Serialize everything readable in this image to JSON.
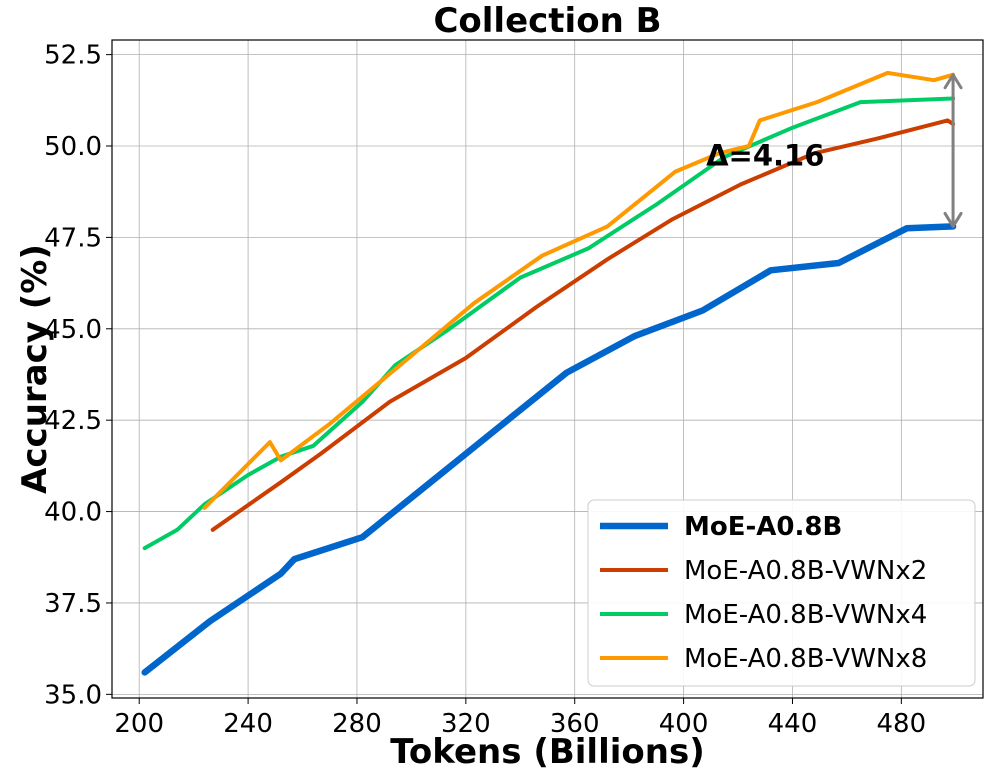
{
  "chart_data": {
    "type": "line",
    "title": "Collection B",
    "xlabel": "Tokens (Billions)",
    "ylabel": "Accuracy (%)",
    "xlim": [
      190,
      510
    ],
    "ylim": [
      34.9,
      52.9
    ],
    "xticks": [
      200,
      240,
      280,
      320,
      360,
      400,
      440,
      480
    ],
    "yticks": [
      35.0,
      37.5,
      40.0,
      42.5,
      45.0,
      47.5,
      50.0,
      52.5
    ],
    "xtick_labels": [
      "200",
      "240",
      "280",
      "320",
      "360",
      "400",
      "440",
      "480"
    ],
    "ytick_labels": [
      "35.0",
      "37.5",
      "40.0",
      "42.5",
      "45.0",
      "47.5",
      "50.0",
      "52.5"
    ],
    "grid": true,
    "legend_position": "lower-right",
    "series": [
      {
        "name": "MoE-A0.8B",
        "color": "#0066CC",
        "bold": true,
        "x": [
          202,
          226,
          252,
          257,
          282,
          307,
          332,
          357,
          382,
          407,
          432,
          457,
          482,
          499
        ],
        "y": [
          35.6,
          37.0,
          38.3,
          38.7,
          39.3,
          40.8,
          42.3,
          43.8,
          44.8,
          45.5,
          46.6,
          46.8,
          47.75,
          47.8
        ]
      },
      {
        "name": "MoE-A0.8B-VWNx2",
        "color": "#CC3D00",
        "bold": false,
        "x": [
          227,
          252,
          267,
          292,
          320,
          346,
          372,
          396,
          421,
          448,
          471,
          497,
          499
        ],
        "y": [
          39.5,
          40.8,
          41.6,
          43.0,
          44.2,
          45.6,
          46.9,
          48.0,
          48.95,
          49.8,
          50.2,
          50.7,
          50.6
        ]
      },
      {
        "name": "MoE-A0.8B-VWNx4",
        "color": "#00CC66",
        "bold": false,
        "x": [
          202,
          214,
          224,
          240,
          252,
          264,
          282,
          294,
          314,
          340,
          365,
          390,
          415,
          440,
          465,
          499
        ],
        "y": [
          39.0,
          39.5,
          40.2,
          41.0,
          41.5,
          41.8,
          43.0,
          44.0,
          45.0,
          46.4,
          47.2,
          48.4,
          49.7,
          50.5,
          51.2,
          51.3
        ]
      },
      {
        "name": "MoE-A0.8B-VWNx8",
        "color": "#FF9900",
        "bold": false,
        "x": [
          224,
          248,
          252,
          270,
          299,
          323,
          348,
          372,
          397,
          413,
          424,
          428,
          449,
          475,
          492,
          499
        ],
        "y": [
          40.1,
          41.9,
          41.4,
          42.4,
          44.2,
          45.7,
          47.0,
          47.8,
          49.3,
          49.8,
          50.0,
          50.7,
          51.2,
          52.0,
          51.8,
          51.95
        ]
      }
    ],
    "annotations": [
      {
        "text": "Δ=4.16",
        "x": 430,
        "y": 49.8,
        "arrow_x": 499,
        "arrow_from": 51.95,
        "arrow_to": 47.8,
        "arrow_color": "#808080"
      }
    ]
  }
}
